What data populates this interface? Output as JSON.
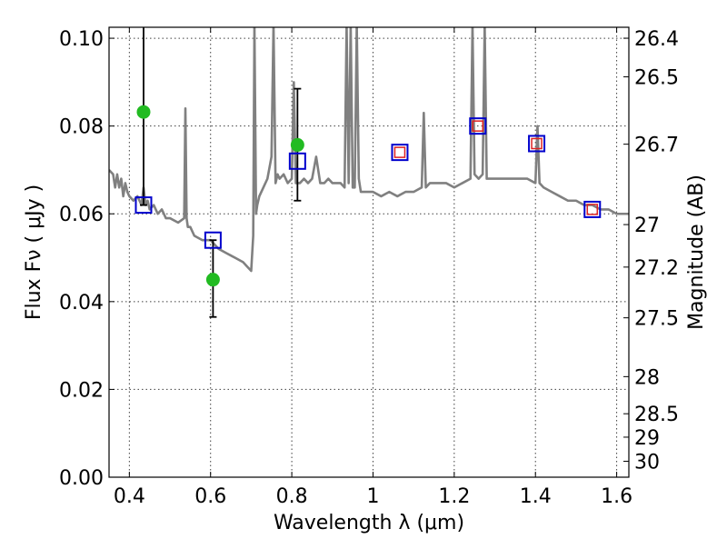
{
  "chart_data": {
    "type": "line",
    "xlabel": "Wavelength  λ (μm)",
    "ylabel": "Flux  Fν  ( μJy )",
    "y2label": "Magnitude (AB)",
    "xlim": [
      0.35,
      1.63
    ],
    "ylim": [
      0.0,
      0.1025
    ],
    "x_ticks": [
      0.4,
      0.6,
      0.8,
      1.0,
      1.2,
      1.4,
      1.6
    ],
    "x_tick_labels": [
      "0.4",
      "0.6",
      "0.8",
      "1",
      "1.2",
      "1.4",
      "1.6"
    ],
    "y_ticks": [
      0.0,
      0.02,
      0.04,
      0.06,
      0.08,
      0.1
    ],
    "y_tick_labels": [
      "0.00",
      "0.02",
      "0.04",
      "0.06",
      "0.08",
      "0.10"
    ],
    "y2_ticks": [
      26.4,
      26.5,
      26.7,
      27,
      27.2,
      27.5,
      28,
      28.5,
      29,
      30
    ],
    "y2_tick_labels": [
      "26.4",
      "26.5",
      "26.7",
      "27",
      "27.2",
      "27.5",
      "28",
      "28.5",
      "29",
      "30"
    ],
    "grid": true,
    "colors": {
      "sed_line": "#808080",
      "observed_points": "#22bb22",
      "model_squares": "#0000cc",
      "model_squares_inner": "#dd2222",
      "error_bars": "#000000"
    },
    "sed_line": {
      "x": [
        0.35,
        0.36,
        0.365,
        0.37,
        0.375,
        0.38,
        0.385,
        0.39,
        0.395,
        0.4,
        0.41,
        0.42,
        0.43,
        0.435,
        0.44,
        0.445,
        0.45,
        0.46,
        0.47,
        0.48,
        0.49,
        0.5,
        0.52,
        0.535,
        0.538,
        0.541,
        0.544,
        0.55,
        0.56,
        0.58,
        0.6,
        0.62,
        0.64,
        0.66,
        0.68,
        0.69,
        0.7,
        0.705,
        0.708,
        0.712,
        0.715,
        0.72,
        0.73,
        0.74,
        0.75,
        0.755,
        0.76,
        0.765,
        0.77,
        0.78,
        0.79,
        0.8,
        0.805,
        0.81,
        0.82,
        0.83,
        0.84,
        0.85,
        0.86,
        0.87,
        0.88,
        0.89,
        0.9,
        0.91,
        0.92,
        0.93,
        0.935,
        0.94,
        0.945,
        0.95,
        0.955,
        0.96,
        0.965,
        0.97,
        0.98,
        1.0,
        1.02,
        1.04,
        1.06,
        1.08,
        1.1,
        1.12,
        1.125,
        1.13,
        1.14,
        1.16,
        1.18,
        1.2,
        1.22,
        1.24,
        1.245,
        1.25,
        1.26,
        1.27,
        1.275,
        1.28,
        1.3,
        1.32,
        1.34,
        1.36,
        1.38,
        1.4,
        1.405,
        1.41,
        1.42,
        1.44,
        1.46,
        1.48,
        1.5,
        1.52,
        1.54,
        1.56,
        1.58,
        1.6,
        1.63
      ],
      "y": [
        0.07,
        0.069,
        0.066,
        0.069,
        0.066,
        0.068,
        0.064,
        0.067,
        0.065,
        0.064,
        0.063,
        0.064,
        0.062,
        0.066,
        0.062,
        0.063,
        0.061,
        0.062,
        0.06,
        0.061,
        0.059,
        0.059,
        0.058,
        0.059,
        0.084,
        0.059,
        0.057,
        0.057,
        0.055,
        0.054,
        0.054,
        0.052,
        0.051,
        0.05,
        0.049,
        0.048,
        0.047,
        0.055,
        0.103,
        0.06,
        0.062,
        0.064,
        0.066,
        0.068,
        0.073,
        0.103,
        0.067,
        0.069,
        0.068,
        0.069,
        0.067,
        0.068,
        0.09,
        0.067,
        0.067,
        0.068,
        0.067,
        0.068,
        0.073,
        0.067,
        0.067,
        0.068,
        0.067,
        0.067,
        0.067,
        0.066,
        0.103,
        0.067,
        0.103,
        0.066,
        0.066,
        0.103,
        0.068,
        0.065,
        0.065,
        0.065,
        0.064,
        0.065,
        0.064,
        0.065,
        0.065,
        0.066,
        0.083,
        0.066,
        0.067,
        0.067,
        0.067,
        0.066,
        0.067,
        0.068,
        0.103,
        0.069,
        0.068,
        0.069,
        0.103,
        0.068,
        0.068,
        0.068,
        0.068,
        0.068,
        0.068,
        0.067,
        0.08,
        0.067,
        0.066,
        0.065,
        0.064,
        0.063,
        0.063,
        0.062,
        0.062,
        0.061,
        0.061,
        0.06,
        0.06
      ]
    },
    "observed_points": [
      {
        "x": 0.435,
        "y": 0.0832,
        "yerr_low": 0.062,
        "yerr_high": 0.103
      },
      {
        "x": 0.606,
        "y": 0.045,
        "yerr_low": 0.0365,
        "yerr_high": 0.054
      },
      {
        "x": 0.814,
        "y": 0.0757,
        "yerr_low": 0.063,
        "yerr_high": 0.0885
      }
    ],
    "model_points": [
      {
        "x": 0.435,
        "y": 0.062,
        "inner": false
      },
      {
        "x": 0.606,
        "y": 0.054,
        "inner": false
      },
      {
        "x": 0.814,
        "y": 0.072,
        "inner": false
      },
      {
        "x": 1.066,
        "y": 0.074,
        "inner": true
      },
      {
        "x": 1.258,
        "y": 0.08,
        "inner": true
      },
      {
        "x": 1.403,
        "y": 0.076,
        "inner": true
      },
      {
        "x": 1.54,
        "y": 0.061,
        "inner": true
      }
    ]
  }
}
